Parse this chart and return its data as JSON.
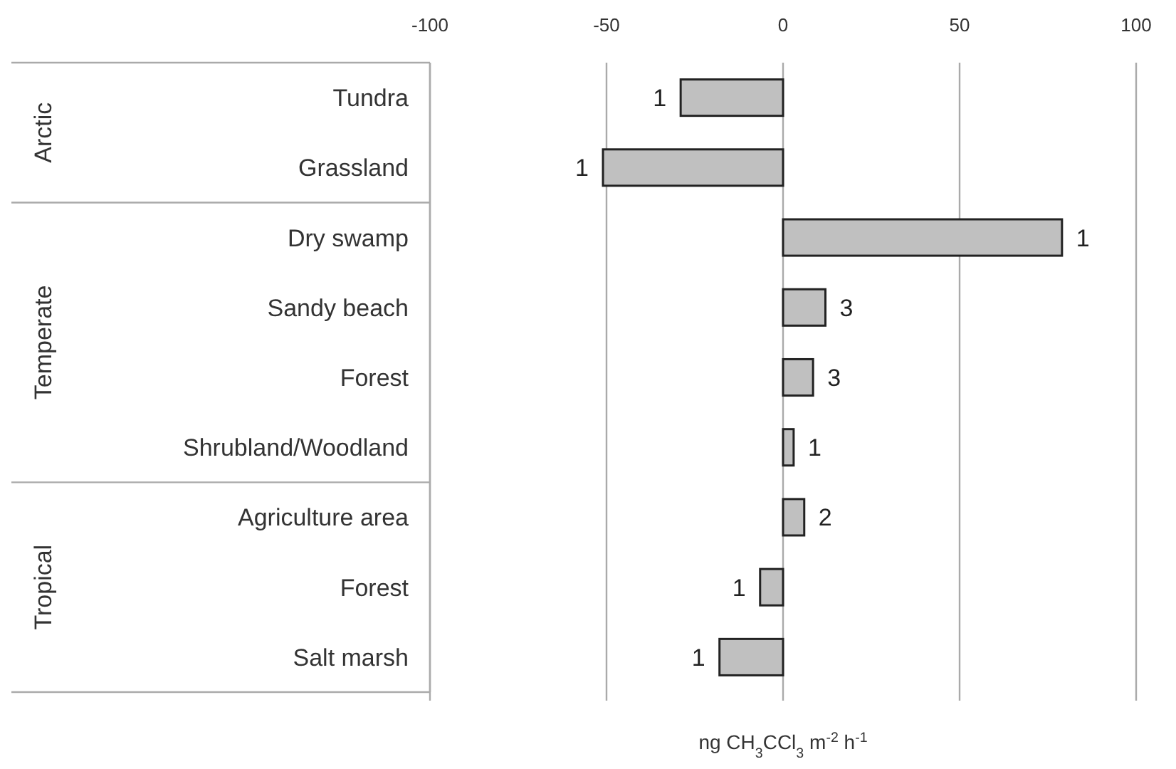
{
  "chart_data": {
    "type": "bar",
    "orientation": "horizontal",
    "categories": [
      "Tundra",
      "Grassland",
      "Dry swamp",
      "Sandy beach",
      "Forest",
      "Shrubland/Woodland",
      "Agriculture area",
      "Forest",
      "Salt marsh"
    ],
    "values": [
      -29,
      -51,
      79,
      12,
      8.5,
      3,
      6,
      -6.5,
      -18
    ],
    "color": "#c0c0c0",
    "xlim": [
      -100,
      100
    ],
    "xticks": [
      -100,
      -50,
      0,
      50,
      100
    ],
    "xlabel": "ng CH$_{3}$CCl$_{3}$ m$^{-2}$ h$^{-1}$",
    "annotations": [
      "Arctic",
      "Temperate",
      "Tropical",
      {
        "text": "1",
        "x": -29,
        "y": "Tundra"
      },
      {
        "text": "1",
        "x": -51,
        "y": "Grassland"
      },
      {
        "text": "1",
        "x": 79,
        "y": "Dry swamp"
      },
      {
        "text": "3",
        "x": 12,
        "y": "Sandy beach"
      },
      {
        "text": "3",
        "x": 8.5,
        "y": "Forest"
      },
      {
        "text": "1",
        "x": 3,
        "y": "Shrubland/Woodland"
      },
      {
        "text": "2",
        "x": 6,
        "y": "Agriculture area"
      },
      {
        "text": "1",
        "x": -6.5
      },
      {
        "text": "1",
        "x": -18,
        "y": "Salt marsh"
      }
    ],
    "grid": "x"
  }
}
